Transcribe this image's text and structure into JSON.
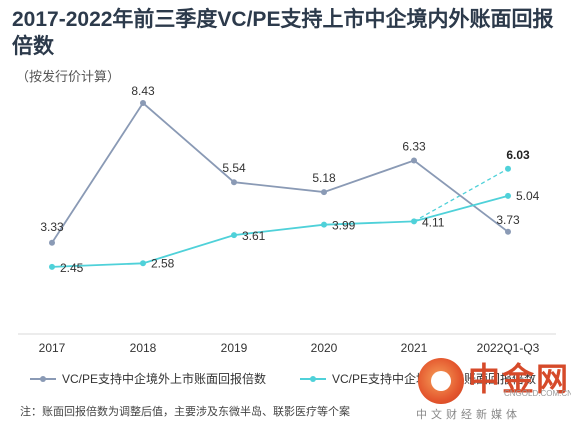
{
  "header": {
    "title": "2017-2022年前三季度VC/PE支持上市中企境内外账面回报倍数",
    "subtitle": "（按发行价计算）"
  },
  "chart_data": {
    "type": "line",
    "categories": [
      "2017",
      "2018",
      "2019",
      "2020",
      "2021",
      "2022Q1-Q3"
    ],
    "ylim": [
      0,
      10
    ],
    "grid": false,
    "legend_position": "bottom",
    "series": [
      {
        "name": "VC/PE支持中企境外上市账面回报倍数",
        "color": "#8a9ab5",
        "values": [
          3.33,
          8.43,
          5.54,
          5.18,
          6.33,
          3.73
        ],
        "labels": [
          "3.33",
          "8.43",
          "5.54",
          "5.18",
          "6.33",
          "3.73"
        ]
      },
      {
        "name": "VC/PE支持中企境内上市账面回报倍数",
        "color": "#4fd1d9",
        "values": [
          2.45,
          2.58,
          3.61,
          3.99,
          4.11,
          5.04
        ],
        "labels": [
          "2.45",
          "2.58",
          "3.61",
          "3.99",
          "4.11",
          "5.04"
        ]
      }
    ],
    "annotation": {
      "category": "2022Q1-Q3",
      "value": 6.03,
      "label": "6.03",
      "from_category": "2021",
      "from_value": 4.11,
      "style": "dashed",
      "color": "#4fd1d9"
    }
  },
  "note": "注：账面回报倍数为调整后值，主要涉及东微半岛、联影医疗等个案",
  "watermark": {
    "brand": "中金网",
    "url": "CNGOLD.COM.CN",
    "tagline": "中文财经新媒体"
  }
}
